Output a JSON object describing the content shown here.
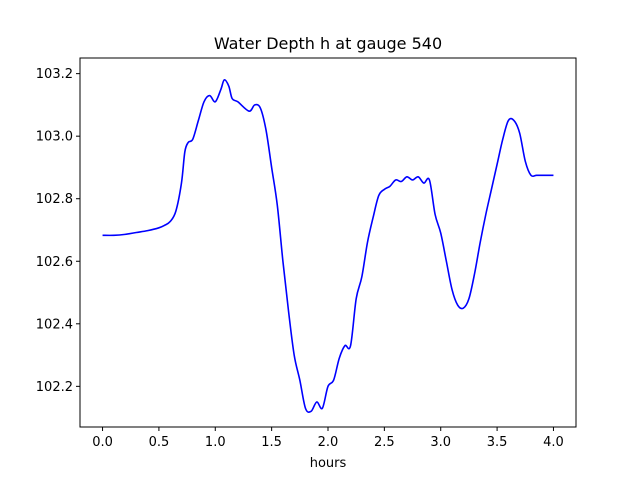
{
  "chart_data": {
    "type": "line",
    "title": "Water Depth h at gauge 540",
    "xlabel": "hours",
    "ylabel": "",
    "xlim": [
      -0.2,
      4.2
    ],
    "ylim": [
      102.07,
      103.25
    ],
    "grid": false,
    "x_ticks": [
      0.0,
      0.5,
      1.0,
      1.5,
      2.0,
      2.5,
      3.0,
      3.5,
      4.0
    ],
    "x_tick_labels": [
      "0.0",
      "0.5",
      "1.0",
      "1.5",
      "2.0",
      "2.5",
      "3.0",
      "3.5",
      "4.0"
    ],
    "y_ticks": [
      102.2,
      102.4,
      102.6,
      102.8,
      103.0,
      103.2
    ],
    "y_tick_labels": [
      "102.2",
      "102.4",
      "102.6",
      "102.8",
      "103.0",
      "103.2"
    ],
    "series": [
      {
        "color": "#0000ff",
        "x": [
          0.0,
          0.1,
          0.2,
          0.3,
          0.4,
          0.5,
          0.55,
          0.6,
          0.65,
          0.7,
          0.73,
          0.76,
          0.8,
          0.85,
          0.9,
          0.95,
          1.0,
          1.05,
          1.08,
          1.12,
          1.15,
          1.2,
          1.3,
          1.35,
          1.4,
          1.45,
          1.5,
          1.55,
          1.6,
          1.65,
          1.7,
          1.75,
          1.8,
          1.85,
          1.9,
          1.95,
          2.0,
          2.05,
          2.1,
          2.15,
          2.2,
          2.25,
          2.3,
          2.35,
          2.4,
          2.45,
          2.5,
          2.55,
          2.6,
          2.65,
          2.7,
          2.75,
          2.8,
          2.85,
          2.9,
          2.95,
          3.0,
          3.05,
          3.1,
          3.15,
          3.2,
          3.25,
          3.3,
          3.35,
          3.4,
          3.45,
          3.5,
          3.55,
          3.6,
          3.65,
          3.7,
          3.75,
          3.8,
          3.85,
          3.9,
          3.95,
          4.0
        ],
        "y": [
          102.683,
          102.683,
          102.686,
          102.692,
          102.698,
          102.707,
          102.715,
          102.727,
          102.76,
          102.85,
          102.95,
          102.98,
          102.99,
          103.05,
          103.11,
          103.13,
          103.11,
          103.15,
          103.18,
          103.16,
          103.12,
          103.11,
          103.08,
          103.1,
          103.09,
          103.02,
          102.9,
          102.78,
          102.6,
          102.44,
          102.3,
          102.22,
          102.13,
          102.12,
          102.15,
          102.13,
          102.2,
          102.22,
          102.29,
          102.33,
          102.33,
          102.48,
          102.55,
          102.66,
          102.74,
          102.81,
          102.83,
          102.84,
          102.86,
          102.855,
          102.87,
          102.86,
          102.87,
          102.85,
          102.86,
          102.75,
          102.69,
          102.6,
          102.51,
          102.46,
          102.45,
          102.48,
          102.56,
          102.66,
          102.75,
          102.83,
          102.91,
          102.99,
          103.05,
          103.05,
          103.01,
          102.92,
          102.875,
          102.875,
          102.875,
          102.875,
          102.875
        ]
      }
    ]
  }
}
